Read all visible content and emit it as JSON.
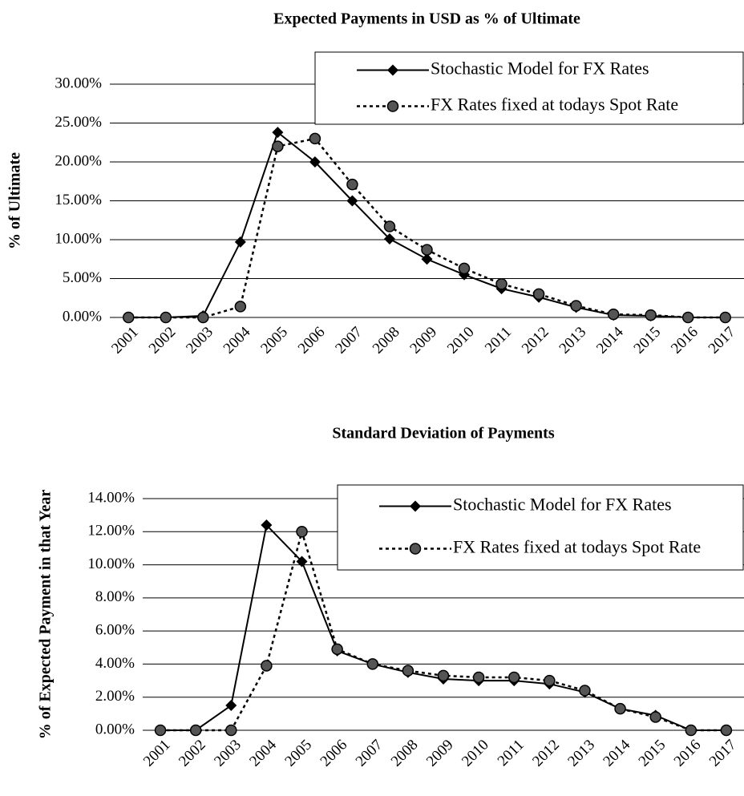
{
  "chart_data": [
    {
      "type": "line",
      "title": "Expected Payments in USD as % of Ultimate",
      "y_label": "% of Ultimate",
      "categories": [
        "2001",
        "2002",
        "2003",
        "2004",
        "2005",
        "2006",
        "2007",
        "2008",
        "2009",
        "2010",
        "2011",
        "2012",
        "2013",
        "2014",
        "2015",
        "2016",
        "2017"
      ],
      "series": [
        {
          "name": "Stochastic Model for FX Rates",
          "color": "#000000",
          "marker": "diamond",
          "line_style": "solid",
          "values": [
            0,
            0,
            0.2,
            9.7,
            23.8,
            20.0,
            15.0,
            10.1,
            7.5,
            5.5,
            3.7,
            2.6,
            1.3,
            0.3,
            0.2,
            0,
            0
          ]
        },
        {
          "name": "FX Rates fixed at todays Spot Rate",
          "color": "#000000",
          "marker": "circle",
          "line_style": "dotted",
          "values": [
            0,
            0,
            0,
            1.4,
            22.0,
            23.0,
            17.1,
            11.7,
            8.7,
            6.3,
            4.3,
            3.0,
            1.5,
            0.4,
            0.3,
            0,
            0
          ]
        }
      ],
      "ylim": [
        0,
        30
      ],
      "yticks": [
        {
          "value": 0,
          "label": "0.00%"
        },
        {
          "value": 5,
          "label": "5.00%"
        },
        {
          "value": 10,
          "label": "10.00%"
        },
        {
          "value": 15,
          "label": "15.00%"
        },
        {
          "value": 20,
          "label": "20.00%"
        },
        {
          "value": 25,
          "label": "25.00%"
        },
        {
          "value": 30,
          "label": "30.00%"
        }
      ],
      "grid": true,
      "legend": "upper right"
    },
    {
      "type": "line",
      "title": "Standard Deviation of Payments",
      "y_label": "% of Expected Payment in that Year",
      "categories": [
        "2001",
        "2002",
        "2003",
        "2004",
        "2005",
        "2006",
        "2007",
        "2008",
        "2009",
        "2010",
        "2011",
        "2012",
        "2013",
        "2014",
        "2015",
        "2016",
        "2017"
      ],
      "series": [
        {
          "name": "Stochastic Model for FX Rates",
          "color": "#000000",
          "marker": "diamond",
          "line_style": "solid",
          "values": [
            0,
            0,
            1.5,
            12.4,
            10.2,
            4.8,
            4.0,
            3.5,
            3.1,
            3.0,
            3.0,
            2.8,
            2.3,
            1.3,
            0.9,
            0,
            0
          ]
        },
        {
          "name": "FX Rates fixed at todays Spot Rate",
          "color": "#000000",
          "marker": "circle",
          "line_style": "dotted",
          "values": [
            0,
            0,
            0,
            3.9,
            12.0,
            4.9,
            4.0,
            3.6,
            3.3,
            3.2,
            3.2,
            3.0,
            2.4,
            1.3,
            0.8,
            0,
            0
          ]
        }
      ],
      "ylim": [
        0,
        14
      ],
      "yticks": [
        {
          "value": 0,
          "label": "0.00%"
        },
        {
          "value": 2,
          "label": "2.00%"
        },
        {
          "value": 4,
          "label": "4.00%"
        },
        {
          "value": 6,
          "label": "6.00%"
        },
        {
          "value": 8,
          "label": "8.00%"
        },
        {
          "value": 10,
          "label": "10.00%"
        },
        {
          "value": 12,
          "label": "12.00%"
        },
        {
          "value": 14,
          "label": "14.00%"
        }
      ],
      "grid": true,
      "legend": "upper right"
    }
  ]
}
